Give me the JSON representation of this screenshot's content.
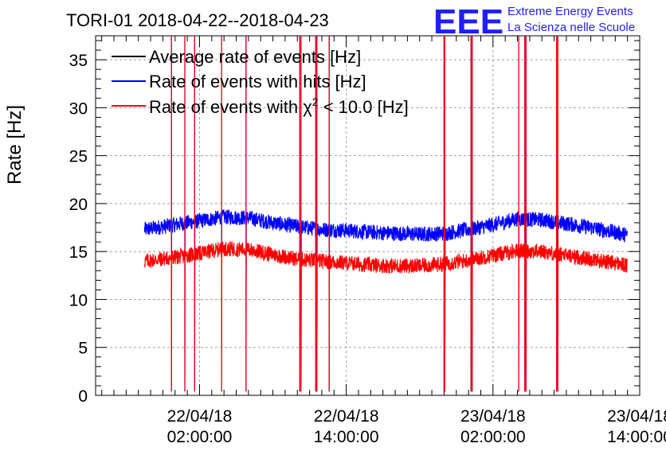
{
  "colors": {
    "average": "#000000",
    "hits": "#0000ff",
    "chi2": "#ff0000",
    "logo": "#1f1fff",
    "grid": "#a0a0a0"
  },
  "logo": {
    "mark": "EEE",
    "line1": "Extreme Energy Events",
    "line2": "La Scienza nelle Scuole"
  },
  "chart_data": {
    "type": "line",
    "title": "TORI-01 2018-04-22--2018-04-23",
    "xlabel": "",
    "ylabel": "Rate [Hz]",
    "ylim": [
      0,
      37.5
    ],
    "xlim_hours": [
      -6.5,
      38.0
    ],
    "grid": true,
    "legend_position": "top-left",
    "x_ticks": [
      {
        "date": "22/04/18",
        "time": "02:00:00",
        "hours": 2
      },
      {
        "date": "22/04/18",
        "time": "14:00:00",
        "hours": 14
      },
      {
        "date": "23/04/18",
        "time": "02:00:00",
        "hours": 26
      },
      {
        "date": "23/04/18",
        "time": "14:00:00",
        "hours": 38
      }
    ],
    "y_ticks": [
      0,
      5,
      10,
      15,
      20,
      25,
      30,
      35
    ],
    "series": [
      {
        "name": "Average rate of events [Hz]",
        "key": "average"
      },
      {
        "name": "Rate of events with hits [Hz]",
        "key": "hits"
      },
      {
        "name": "Rate of events with χ² < 10.0 [Hz]",
        "key": "chi2",
        "label_prefix": "Rate of events with ",
        "label_chi": "χ",
        "label_sup": "2",
        "label_suffix": " < 10.0 [Hz]"
      }
    ],
    "profile_hours": [
      -2.5,
      0,
      2,
      4,
      6,
      8,
      10,
      12,
      14,
      16,
      18,
      20,
      22,
      24,
      26,
      28,
      30,
      32,
      34,
      36,
      37.0
    ],
    "hits_profile": [
      17.3,
      17.8,
      18.2,
      18.6,
      18.5,
      18.0,
      17.6,
      17.3,
      17.2,
      17.0,
      16.9,
      16.8,
      16.9,
      17.3,
      17.8,
      18.4,
      18.3,
      17.9,
      17.5,
      17.0,
      16.7
    ],
    "chi2_profile": [
      14.0,
      14.4,
      14.8,
      15.3,
      15.2,
      14.7,
      14.2,
      14.0,
      13.8,
      13.6,
      13.5,
      13.5,
      13.7,
      14.1,
      14.6,
      15.1,
      15.0,
      14.6,
      14.2,
      13.8,
      13.5
    ],
    "dropouts_hours": [
      -0.3,
      0.8,
      1.6,
      3.8,
      5.8,
      10.2,
      10.3,
      11.5,
      11.6,
      12.6,
      22.0,
      22.05,
      24.2,
      24.3,
      28.1,
      28.6,
      28.7,
      31.2,
      31.3
    ]
  }
}
